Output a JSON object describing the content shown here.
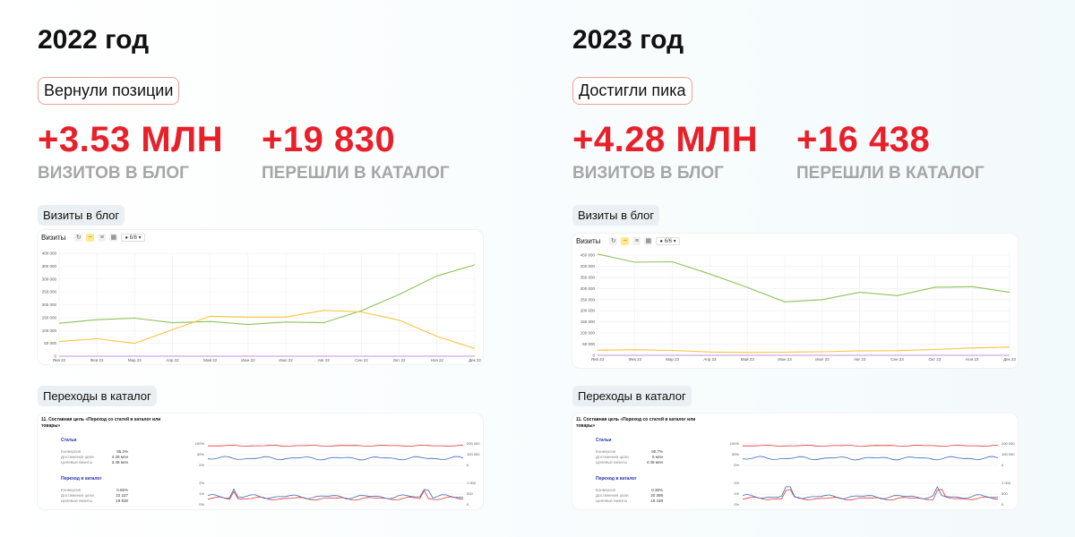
{
  "left": {
    "year": "2022 год",
    "badge": "Вернули позиции",
    "metric1": {
      "value": "+3.53 МЛН",
      "label": "ВИЗИТОВ В БЛОГ"
    },
    "metric2": {
      "value": "+19 830",
      "label": "ПЕРЕШЛИ В КАТАЛОГ"
    },
    "visits_section": "Визиты в блог",
    "visits_toolbar": {
      "title": "Визиты",
      "select": "6/6"
    },
    "catalog_section": "Переходы в каталог",
    "catalog_goal": "11. Составная цель «Переход со статей в каталог или товары»",
    "catalog_block1": {
      "title": "Статьи",
      "rows": [
        [
          "Конверсия",
          "95.2%"
        ],
        [
          "Достижения цели",
          "4.29 млн"
        ],
        [
          "Целевые визиты",
          "3.48 млн"
        ]
      ]
    },
    "catalog_block2": {
      "title": "Переход в каталог",
      "rows": [
        [
          "Конверсия",
          "0.65%"
        ],
        [
          "Достижения цели",
          "22 227"
        ],
        [
          "Целевые визиты",
          "19 830"
        ]
      ]
    }
  },
  "right": {
    "year": "2023 год",
    "badge": "Достигли пика",
    "metric1": {
      "value": "+4.28 МЛН",
      "label": "ВИЗИТОВ В БЛОГ"
    },
    "metric2": {
      "value": "+16 438",
      "label": "ПЕРЕШЛИ В КАТАЛОГ"
    },
    "visits_section": "Визиты в блог",
    "visits_toolbar": {
      "title": "Визиты",
      "select": "6/6"
    },
    "catalog_section": "Переходы в каталог",
    "catalog_goal": "11. Составная цель «Переход со статей в каталог или товары»",
    "catalog_block1": {
      "title": "Статьи",
      "rows": [
        [
          "Конверсия",
          "90.7%"
        ],
        [
          "Достижения цели",
          "5 млн"
        ],
        [
          "Целевые визиты",
          "4.49 млн"
        ]
      ]
    },
    "catalog_block2": {
      "title": "Переход в каталог",
      "rows": [
        [
          "Конверсия",
          "0.36%"
        ],
        [
          "Достижения цели",
          "20 398"
        ],
        [
          "Целевые визиты",
          "16 438"
        ]
      ]
    }
  },
  "colors": {
    "accent_red": "#e8202a",
    "green_series": "#8dc25a",
    "yellow_series": "#f7c43b",
    "gray_label": "#a6a6a6"
  },
  "chart_data": [
    {
      "type": "line",
      "title": "",
      "xlabel": "",
      "ylabel": "",
      "categories": [
        "Янв 22",
        "Фев 22",
        "Мар 22",
        "Апр 22",
        "Май 22",
        "Июн 22",
        "Июл 22",
        "Авг 22",
        "Сен 22",
        "Окт 22",
        "Ноя 22",
        "Дек 22"
      ],
      "yticks": [
        "0",
        "50 000",
        "100 000",
        "150 000",
        "200 000",
        "250 000",
        "300 000",
        "350 000",
        "400 000"
      ],
      "ylim": [
        0,
        400000
      ],
      "grid": true,
      "series": [
        {
          "color": "green",
          "values": [
            128000,
            142000,
            148000,
            130000,
            135000,
            123000,
            133000,
            130000,
            177000,
            240000,
            312000,
            355000
          ]
        },
        {
          "color": "yellow",
          "values": [
            57000,
            68000,
            50000,
            103000,
            155000,
            152000,
            152000,
            178000,
            172000,
            140000,
            77000,
            30000
          ]
        }
      ]
    },
    {
      "type": "line",
      "title": "",
      "xlabel": "",
      "ylabel": "",
      "categories": [
        "Янв 23",
        "Фев 23",
        "Мар 23",
        "Апр 23",
        "Май 23",
        "Июн 23",
        "Июл 23",
        "Авг 23",
        "Сен 23",
        "Окт 23",
        "Ноя 23",
        "Дек 23"
      ],
      "yticks": [
        "0",
        "50 000",
        "100 000",
        "150 000",
        "200 000",
        "250 000",
        "300 000",
        "350 000",
        "400 000",
        "450 000"
      ],
      "ylim": [
        0,
        450000
      ],
      "grid": true,
      "series": [
        {
          "color": "green",
          "values": [
            455000,
            418000,
            420000,
            365000,
            305000,
            240000,
            250000,
            283000,
            268000,
            305000,
            308000,
            283000
          ]
        },
        {
          "color": "yellow",
          "values": [
            23000,
            25000,
            22000,
            15000,
            13000,
            14000,
            16000,
            20000,
            21000,
            26000,
            33000,
            37000
          ]
        }
      ]
    }
  ]
}
